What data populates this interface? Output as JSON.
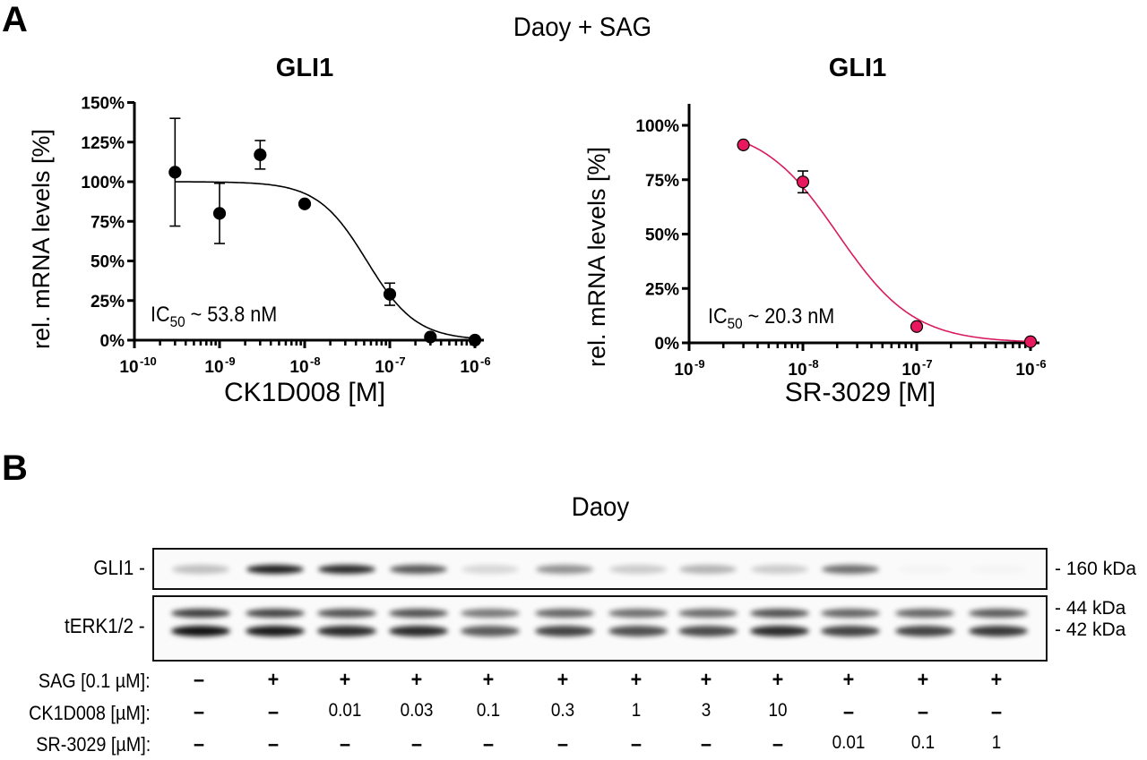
{
  "panelA": {
    "letter": "A",
    "title": "Daoy + SAG"
  },
  "panelB": {
    "letter": "B",
    "title": "Daoy"
  },
  "chart_data": [
    {
      "type": "scatter",
      "title": "GLI1",
      "xlabel": "CK1D008 [M]",
      "ylabel": "rel. mRNA levels [%]",
      "xscale": "log",
      "xlim": [
        1e-10,
        1e-06
      ],
      "ylim": [
        0,
        150
      ],
      "x_ticks": [
        "10^-10",
        "10^-9",
        "10^-8",
        "10^-7",
        "10^-6"
      ],
      "y_ticks": [
        "0%",
        "25%",
        "50%",
        "75%",
        "100%",
        "125%",
        "150%"
      ],
      "annotation": "IC50 ~ 53.8 nM",
      "marker_color": "#000000",
      "fit_color": "#000000",
      "points": [
        {
          "x": 3e-10,
          "y": 106,
          "err": 34
        },
        {
          "x": 1e-09,
          "y": 80,
          "err": 19
        },
        {
          "x": 3e-09,
          "y": 117,
          "err": 9
        },
        {
          "x": 1e-08,
          "y": 86,
          "err": 0
        },
        {
          "x": 1e-07,
          "y": 29,
          "err": 7
        },
        {
          "x": 3e-07,
          "y": 2,
          "err": 0
        },
        {
          "x": 1e-06,
          "y": 0,
          "err": 0
        }
      ],
      "fit": {
        "top": 100,
        "bottom": 0,
        "ic50": 5.38e-08,
        "hill": 1.5
      }
    },
    {
      "type": "scatter",
      "title": "GLI1",
      "xlabel": "SR-3029 [M]",
      "ylabel": "rel. mRNA levels [%]",
      "xscale": "log",
      "xlim": [
        1e-09,
        1e-06
      ],
      "ylim": [
        0,
        110
      ],
      "x_ticks": [
        "10^-9",
        "10^-8",
        "10^-7",
        "10^-6"
      ],
      "y_ticks": [
        "0%",
        "25%",
        "50%",
        "75%",
        "100%"
      ],
      "annotation": "IC50 ~ 20.3 nM",
      "marker_color": "#e8185f",
      "fit_color": "#d81b60",
      "points": [
        {
          "x": 3e-09,
          "y": 91,
          "err": 0
        },
        {
          "x": 1e-08,
          "y": 74,
          "err": 5
        },
        {
          "x": 1e-07,
          "y": 7.5,
          "err": 0
        },
        {
          "x": 1e-06,
          "y": 0.5,
          "err": 0
        }
      ],
      "fit": {
        "top": 100,
        "bottom": 0,
        "ic50": 2.03e-08,
        "hill": 1.3
      }
    },
    {
      "type": "table",
      "title": "Western blot (Daoy)",
      "blots": [
        {
          "label": "GLI1 -",
          "markers": [
            "- 160 kDa"
          ],
          "band_intensity": [
            0.25,
            0.95,
            0.9,
            0.7,
            0.15,
            0.45,
            0.2,
            0.3,
            0.2,
            0.6,
            0.02,
            0.02
          ]
        },
        {
          "label": "tERK1/2 -",
          "markers": [
            "- 44 kDa",
            "- 42 kDa"
          ],
          "band_intensity": [
            0.95,
            0.92,
            0.85,
            0.85,
            0.65,
            0.75,
            0.7,
            0.72,
            0.85,
            0.75,
            0.75,
            0.8
          ]
        }
      ],
      "conditions": [
        {
          "label": "SAG [0.1 µM]:",
          "values": [
            "–",
            "+",
            "+",
            "+",
            "+",
            "+",
            "+",
            "+",
            "+",
            "+",
            "+",
            "+"
          ]
        },
        {
          "label": "CK1D008 [µM]:",
          "values": [
            "–",
            "–",
            "0.01",
            "0.03",
            "0.1",
            "0.3",
            "1",
            "3",
            "10",
            "–",
            "–",
            "–"
          ]
        },
        {
          "label": "SR-3029 [µM]:",
          "values": [
            "–",
            "–",
            "–",
            "–",
            "–",
            "–",
            "–",
            "–",
            "–",
            "0.01",
            "0.1",
            "1"
          ]
        }
      ]
    }
  ]
}
